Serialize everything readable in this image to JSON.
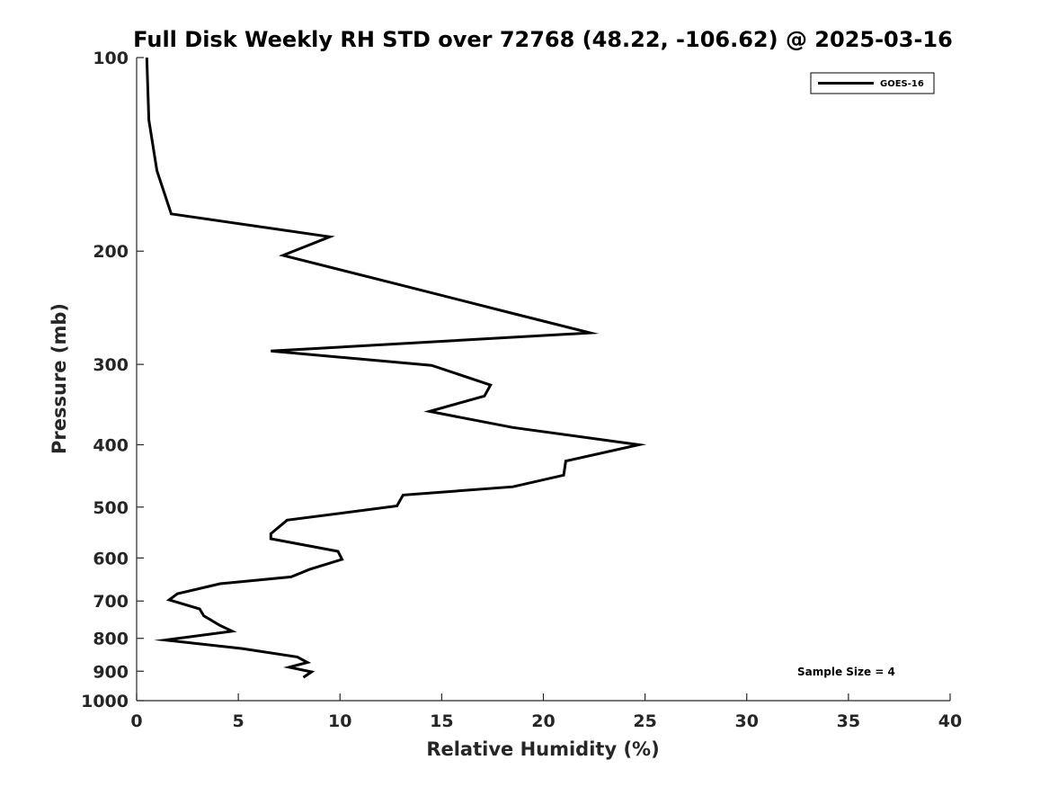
{
  "chart_data": {
    "type": "line",
    "title": "Full Disk Weekly RH STD over 72768 (48.22, -106.62) @ 2025-03-16",
    "xlabel": "Relative Humidity (%)",
    "ylabel": "Pressure (mb)",
    "xlim": [
      0,
      40
    ],
    "ylim": [
      100,
      1000
    ],
    "y_scale": "log",
    "y_reversed": true,
    "x_ticks": [
      0,
      5,
      10,
      15,
      20,
      25,
      30,
      35,
      40
    ],
    "y_ticks": [
      100,
      200,
      300,
      400,
      500,
      600,
      700,
      800,
      900,
      1000
    ],
    "grid": false,
    "legend_position": "top-right",
    "annotation": "Sample Size = 4",
    "series": [
      {
        "name": "GOES-16",
        "color": "#000000",
        "x": [
          0.5,
          0.6,
          1.0,
          1.7,
          9.5,
          7.2,
          12.8,
          18.5,
          22.3,
          6.6,
          14.5,
          17.4,
          17.1,
          14.4,
          18.5,
          24.7,
          21.1,
          21.0,
          18.5,
          13.1,
          12.8,
          7.4,
          6.6,
          6.6,
          9.9,
          10.1,
          8.5,
          7.6,
          4.1,
          2.0,
          1.6,
          3.1,
          3.3,
          4.1,
          4.7,
          1.4,
          5.2,
          7.9,
          8.4,
          7.5,
          8.6,
          8.2
        ],
        "y": [
          100,
          125,
          150,
          175,
          190,
          203,
          225,
          250,
          268,
          286,
          301,
          323,
          336,
          355,
          376,
          400,
          424,
          446,
          465,
          479,
          498,
          524,
          550,
          560,
          586,
          603,
          625,
          642,
          658,
          682,
          697,
          720,
          738,
          764,
          780,
          805,
          830,
          855,
          872,
          887,
          902,
          920
        ]
      }
    ]
  }
}
